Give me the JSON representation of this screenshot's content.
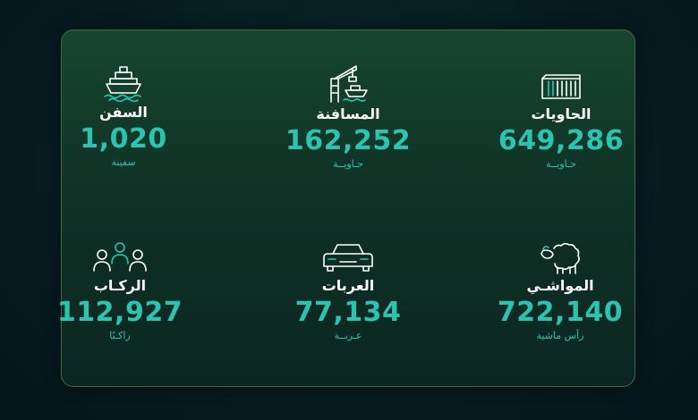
{
  "stats": [
    {
      "label": "السفن",
      "value": "1,020",
      "unit": "سفينة",
      "icon": "ship-icon"
    },
    {
      "label": "المسافنة",
      "value": "162,252",
      "unit": "حـاويــة",
      "icon": "port-crane-icon"
    },
    {
      "label": "الحاويات",
      "value": "649,286",
      "unit": "حـاويــة",
      "icon": "container-icon"
    },
    {
      "label": "الركـاب",
      "value": "112,927",
      "unit": "راكـبًا",
      "icon": "passengers-icon"
    },
    {
      "label": "العربات",
      "value": "77,134",
      "unit": "عـربــة",
      "icon": "car-icon"
    },
    {
      "label": "المواشـي",
      "value": "722,140",
      "unit": "رأس ماشية",
      "icon": "sheep-icon"
    }
  ],
  "colors": {
    "accent": "#2cc4b0",
    "card_border": "#3f6a48",
    "background": "#061c20"
  }
}
